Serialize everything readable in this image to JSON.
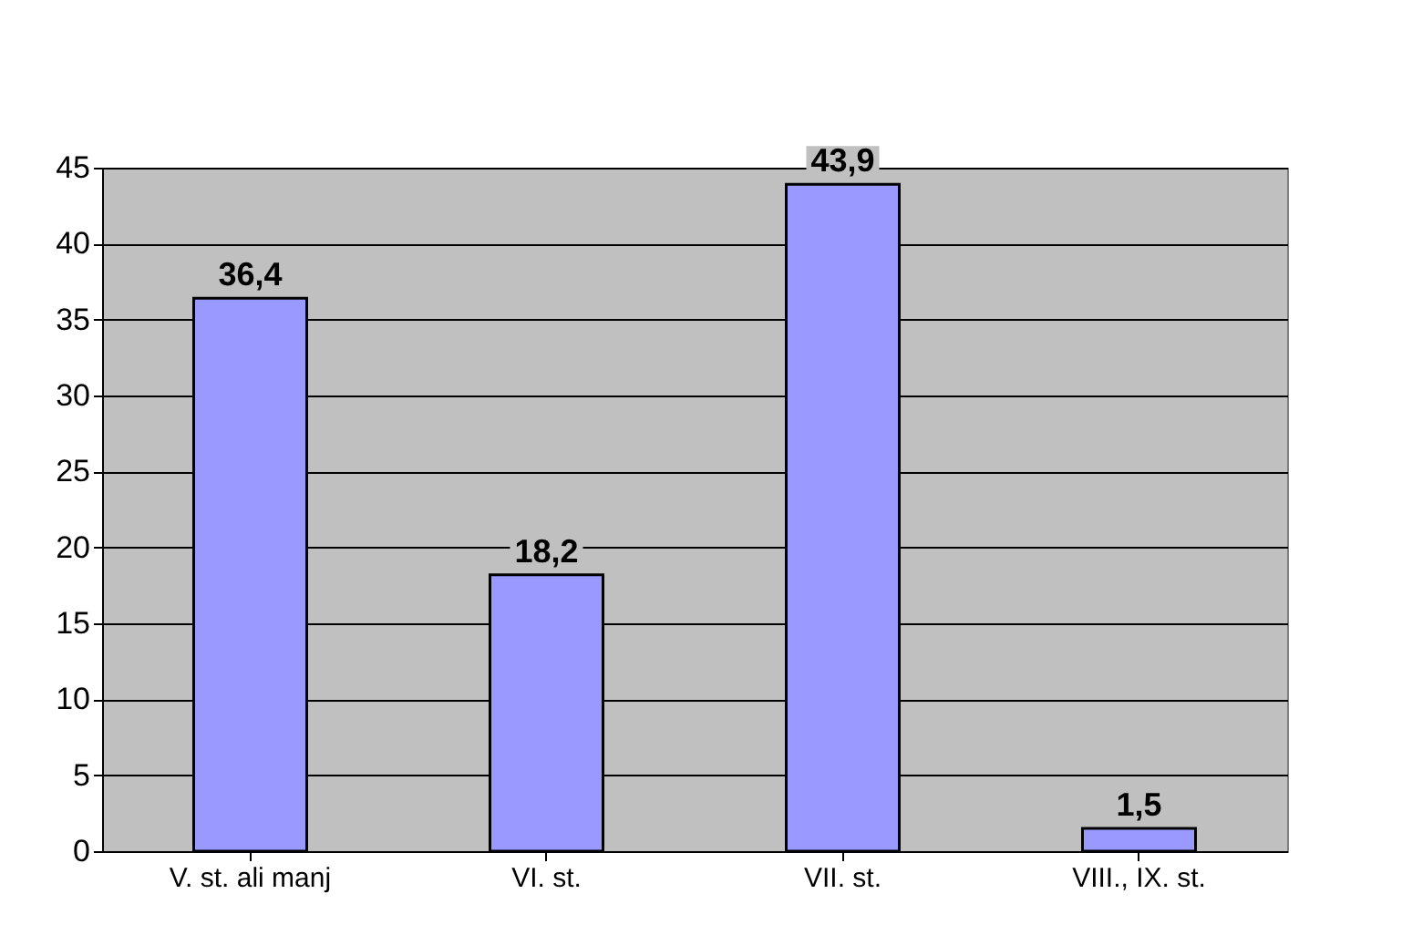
{
  "chart_data": {
    "type": "bar",
    "categories": [
      "V. st. ali manj",
      "VI. st.",
      "VII. st.",
      "VIII., IX. st."
    ],
    "values": [
      36.4,
      18.2,
      43.9,
      1.5
    ],
    "value_labels": [
      "36,4",
      "18,2",
      "43,9",
      "1,5"
    ],
    "color": "#9999ff",
    "ylim": [
      0,
      45
    ],
    "yticks": [
      0,
      5,
      10,
      15,
      20,
      25,
      30,
      35,
      40,
      45
    ],
    "grid": "y"
  }
}
